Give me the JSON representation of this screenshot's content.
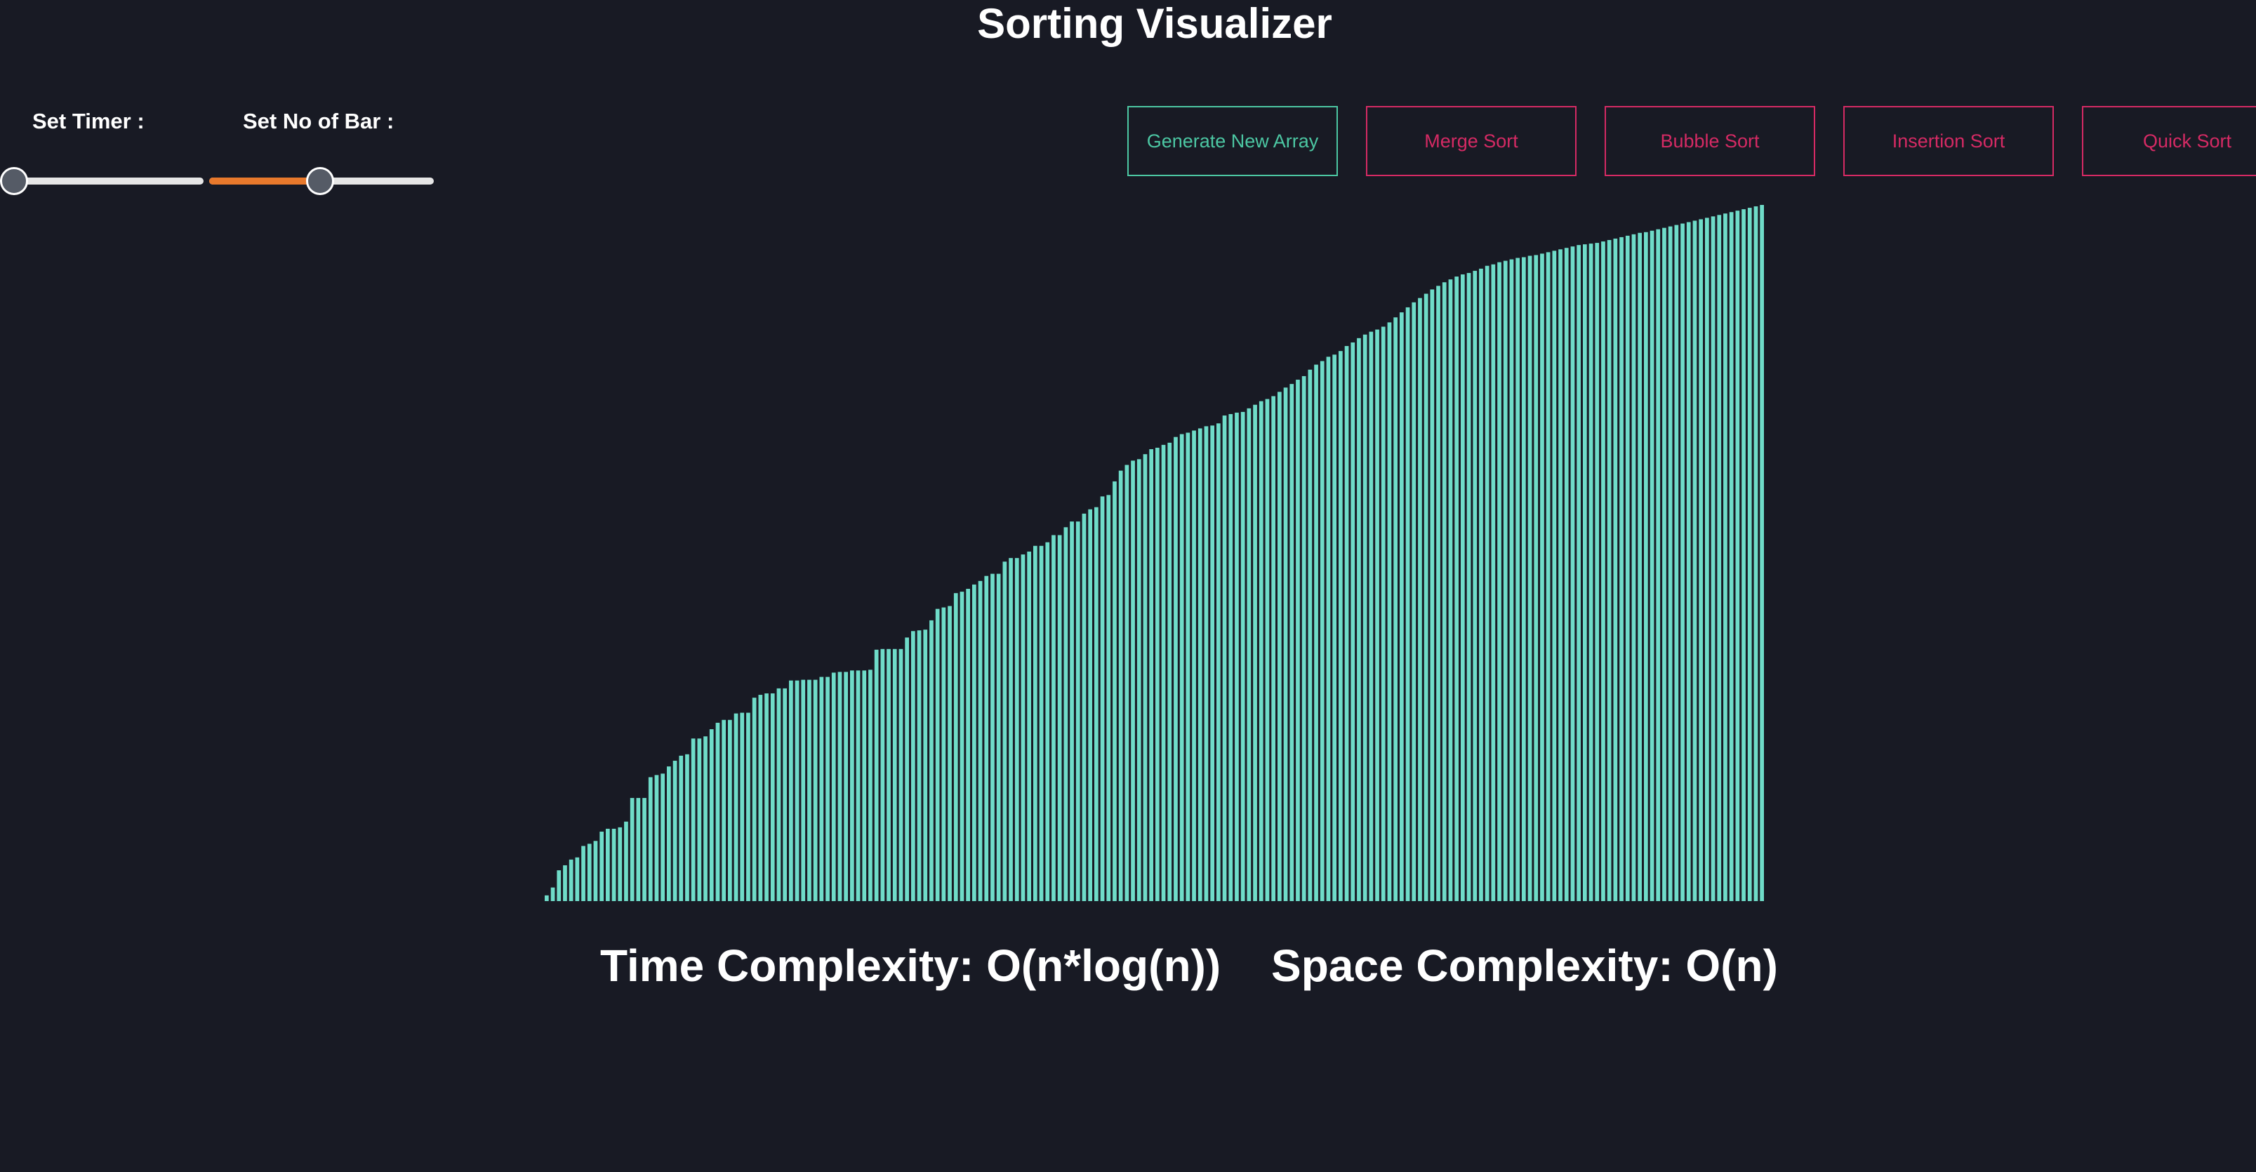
{
  "app": {
    "title": "Sorting Visualizer"
  },
  "controls": {
    "timer_label": "Set Timer :",
    "bars_label": "Set No of Bar :",
    "timer_value": 0.0,
    "bars_value": 0.49,
    "fill_color": "#e8792c"
  },
  "buttons": {
    "generate": "Generate New Array",
    "merge": "Merge Sort",
    "bubble": "Bubble Sort",
    "insertion": "Insertion Sort",
    "quick": "Quick Sort"
  },
  "colors": {
    "bar": "#6fdcc9",
    "generate_accent": "#4cc7a3",
    "sort_accent": "#d52a64",
    "background": "#181a24"
  },
  "chart_data": {
    "type": "bar",
    "values": [
      8,
      19,
      43,
      50,
      58,
      61,
      77,
      80,
      84,
      97,
      101,
      101,
      103,
      111,
      144,
      144,
      144,
      173,
      176,
      178,
      188,
      196,
      203,
      205,
      227,
      227,
      230,
      240,
      249,
      253,
      253,
      262,
      263,
      263,
      284,
      288,
      290,
      290,
      297,
      297,
      308,
      308,
      309,
      309,
      309,
      313,
      313,
      319,
      320,
      320,
      322,
      322,
      322,
      323,
      351,
      352,
      352,
      352,
      352,
      368,
      377,
      378,
      379,
      392,
      408,
      410,
      412,
      430,
      432,
      436,
      442,
      447,
      454,
      457,
      457,
      474,
      479,
      479,
      484,
      488,
      496,
      496,
      501,
      511,
      511,
      522,
      530,
      530,
      541,
      547,
      550,
      565,
      567,
      586,
      601,
      609,
      615,
      617,
      624,
      631,
      633,
      637,
      640,
      648,
      652,
      654,
      657,
      660,
      663,
      664,
      667,
      678,
      680,
      682,
      683,
      688,
      693,
      698,
      701,
      705,
      711,
      717,
      722,
      728,
      733,
      742,
      749,
      754,
      760,
      763,
      768,
      775,
      780,
      786,
      791,
      795,
      798,
      802,
      808,
      815,
      822,
      829,
      836,
      842,
      848,
      854,
      859,
      864,
      868,
      872,
      875,
      877,
      880,
      883,
      887,
      889,
      892,
      894,
      896,
      898,
      899,
      901,
      902,
      904,
      906,
      908,
      910,
      912,
      914,
      916,
      917,
      918,
      919,
      921,
      923,
      925,
      927,
      929,
      931,
      933,
      934,
      936,
      938,
      940,
      942,
      944,
      946,
      948,
      950,
      952,
      954,
      956,
      958,
      960,
      962,
      964,
      966,
      968,
      970,
      972
    ]
  },
  "complexity": {
    "time": "Time Complexity: O(n*log(n))",
    "space": "Space Complexity: O(n)"
  }
}
